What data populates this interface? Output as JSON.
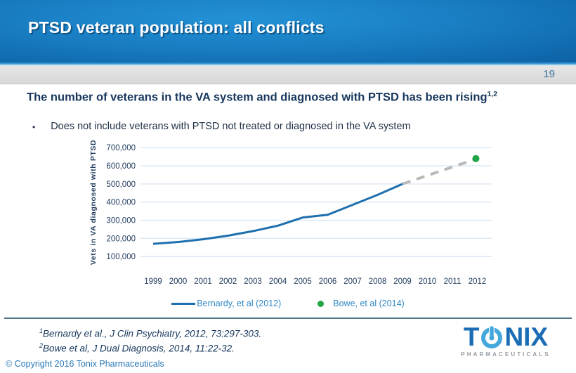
{
  "header": {
    "title": "PTSD veteran population: all conflicts"
  },
  "page_band": {
    "page_number": "19"
  },
  "content": {
    "heading": "The number of veterans in the VA system and diagnosed with PTSD has been rising",
    "heading_sup": "1,2",
    "bullet_glyph": "•",
    "bullet": "Does not include veterans with PTSD not treated or diagnosed in the VA system"
  },
  "chart_data": {
    "type": "line",
    "title": "",
    "xlabel": "",
    "ylabel": "Vets in VA diagnosed with PTSD",
    "categories": [
      1999,
      2000,
      2001,
      2002,
      2003,
      2004,
      2005,
      2006,
      2007,
      2008,
      2009,
      2010,
      2011,
      2012
    ],
    "ylim": [
      0,
      700000
    ],
    "y_tick_values": [
      100000,
      200000,
      300000,
      400000,
      500000,
      600000,
      700000
    ],
    "grid": true,
    "legend_position": "bottom",
    "series": [
      {
        "name": "Bernardy, et al (2012)",
        "style": "solid",
        "color": "#1e6fae",
        "x": [
          1999,
          2000,
          2001,
          2002,
          2003,
          2004,
          2005,
          2006,
          2007,
          2008,
          2009
        ],
        "values": [
          170000,
          180000,
          195000,
          215000,
          240000,
          270000,
          315000,
          330000,
          385000,
          440000,
          500000
        ]
      },
      {
        "name": "projection (dashed)",
        "style": "dashed",
        "color": "#b8b8b8",
        "x": [
          2009,
          2012
        ],
        "values": [
          500000,
          640000
        ]
      },
      {
        "name": "Bowe, et al (2014)",
        "style": "point",
        "color": "#22a546",
        "x": [
          2012
        ],
        "values": [
          640000
        ]
      }
    ],
    "legend": [
      {
        "label": "Bernardy, et al (2012)",
        "marker": "line",
        "color": "#1e6fae"
      },
      {
        "label": "Bowe, et al (2014)",
        "marker": "dot",
        "color": "#22a546"
      }
    ],
    "gridline_color": "#d9e6f2",
    "axis_text_color": "#1f3a5c"
  },
  "footnotes": [
    {
      "sup": "1",
      "text": "Bernardy et al., J Clin Psychiatry, 2012, 73:297-303."
    },
    {
      "sup": "2",
      "text": "Bowe et al, J Dual Diagnosis, 2014, 11:22-32."
    }
  ],
  "logo": {
    "t": "T",
    "nix": "NIX",
    "subtitle": "PHARMACEUTICALS",
    "dark_blue": "#1a6cb4",
    "light_blue": "#45a8dc"
  },
  "footer": {
    "copyright": "© Copyright 2016 Tonix Pharmaceuticals"
  }
}
